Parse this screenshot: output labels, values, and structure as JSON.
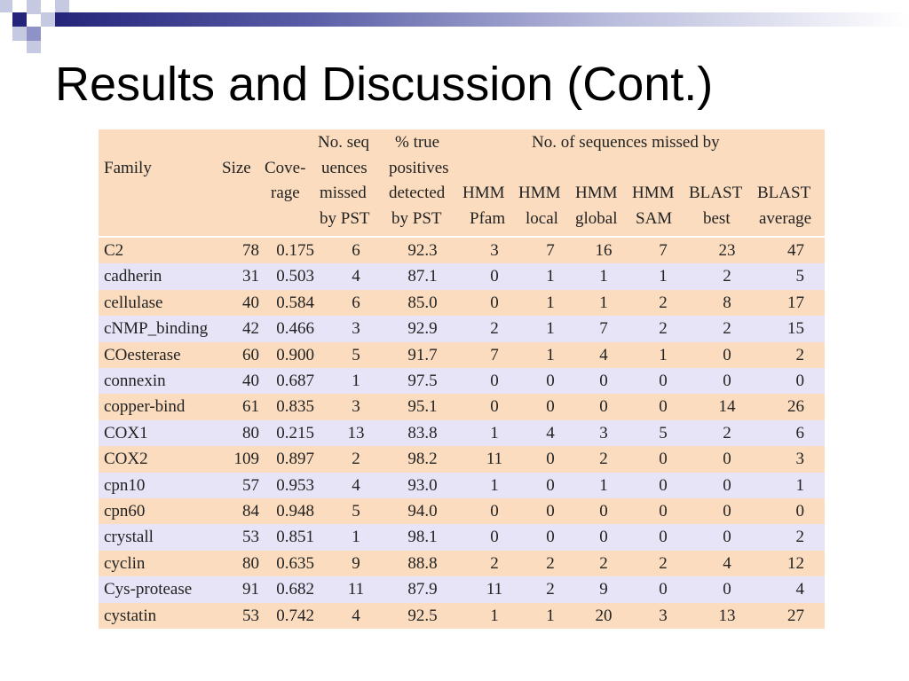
{
  "slide": {
    "title": "Results and Discussion (Cont.)"
  },
  "table": {
    "headers": {
      "family": "Family",
      "size": "Size",
      "coverage": [
        "Cove-",
        "rage"
      ],
      "missed_pst": [
        "No. seq",
        "uences",
        "missed",
        "by PST"
      ],
      "true_pos": [
        "% true",
        "positives",
        "detected",
        "by PST"
      ],
      "group": "No. of sequences missed by",
      "hmm_pfam": [
        "HMM",
        "Pfam"
      ],
      "hmm_local": [
        "HMM",
        "local"
      ],
      "hmm_global": [
        "HMM",
        "global"
      ],
      "hmm_sam": [
        "HMM",
        "SAM"
      ],
      "blast_best": [
        "BLAST",
        "best"
      ],
      "blast_avg": [
        "BLAST",
        "average"
      ]
    },
    "rows": [
      [
        "C2",
        "78",
        "0.175",
        "6",
        "92.3",
        "3",
        "7",
        "16",
        "7",
        "23",
        "47"
      ],
      [
        "cadherin",
        "31",
        "0.503",
        "4",
        "87.1",
        "0",
        "1",
        "1",
        "1",
        "2",
        "5"
      ],
      [
        "cellulase",
        "40",
        "0.584",
        "6",
        "85.0",
        "0",
        "1",
        "1",
        "2",
        "8",
        "17"
      ],
      [
        "cNMP_binding",
        "42",
        "0.466",
        "3",
        "92.9",
        "2",
        "1",
        "7",
        "2",
        "2",
        "15"
      ],
      [
        "COesterase",
        "60",
        "0.900",
        "5",
        "91.7",
        "7",
        "1",
        "4",
        "1",
        "0",
        "2"
      ],
      [
        "connexin",
        "40",
        "0.687",
        "1",
        "97.5",
        "0",
        "0",
        "0",
        "0",
        "0",
        "0"
      ],
      [
        "copper-bind",
        "61",
        "0.835",
        "3",
        "95.1",
        "0",
        "0",
        "0",
        "0",
        "14",
        "26"
      ],
      [
        "COX1",
        "80",
        "0.215",
        "13",
        "83.8",
        "1",
        "4",
        "3",
        "5",
        "2",
        "6"
      ],
      [
        "COX2",
        "109",
        "0.897",
        "2",
        "98.2",
        "11",
        "0",
        "2",
        "0",
        "0",
        "3"
      ],
      [
        "cpn10",
        "57",
        "0.953",
        "4",
        "93.0",
        "1",
        "0",
        "1",
        "0",
        "0",
        "1"
      ],
      [
        "cpn60",
        "84",
        "0.948",
        "5",
        "94.0",
        "0",
        "0",
        "0",
        "0",
        "0",
        "0"
      ],
      [
        "crystall",
        "53",
        "0.851",
        "1",
        "98.1",
        "0",
        "0",
        "0",
        "0",
        "0",
        "2"
      ],
      [
        "cyclin",
        "80",
        "0.635",
        "9",
        "88.8",
        "2",
        "2",
        "2",
        "2",
        "4",
        "12"
      ],
      [
        "Cys-protease",
        "91",
        "0.682",
        "11",
        "87.9",
        "11",
        "2",
        "9",
        "0",
        "0",
        "4"
      ],
      [
        "cystatin",
        "53",
        "0.742",
        "4",
        "92.5",
        "1",
        "1",
        "20",
        "3",
        "13",
        "27"
      ]
    ]
  }
}
